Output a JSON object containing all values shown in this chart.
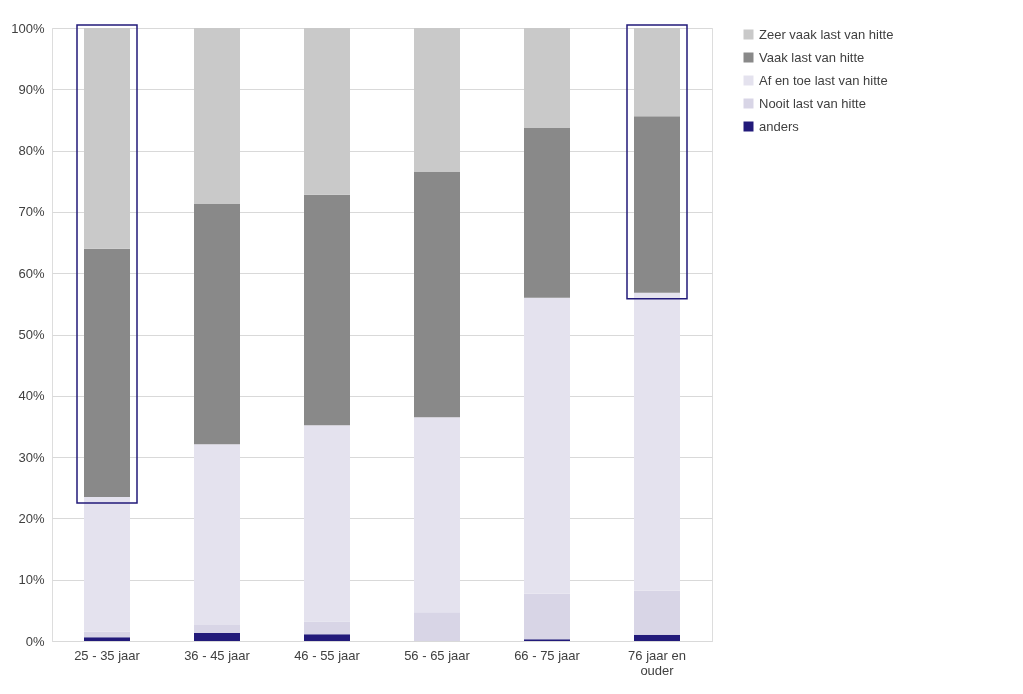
{
  "chart_data": {
    "type": "bar",
    "stacked": true,
    "categories": [
      "25 - 35 jaar",
      "36 - 45 jaar",
      "46 - 55 jaar",
      "56 - 65 jaar",
      "66 - 75 jaar",
      "76 jaar en ouder"
    ],
    "series": [
      {
        "name": "anders",
        "color": "#221a7a",
        "values": [
          0.6,
          1.3,
          1.1,
          0,
          0.3,
          1.0
        ]
      },
      {
        "name": "Nooit last van hitte",
        "color": "#d8d5e6",
        "values": [
          0.9,
          1.3,
          2.1,
          4.7,
          7.4,
          7.2
        ]
      },
      {
        "name": "Af en toe last van hitte",
        "color": "#e4e2ee",
        "values": [
          22.0,
          29.5,
          32.0,
          31.8,
          48.3,
          48.6
        ]
      },
      {
        "name": "Vaak last van hitte",
        "color": "#898989",
        "values": [
          40.5,
          39.2,
          37.6,
          40.0,
          27.7,
          28.8
        ]
      },
      {
        "name": "Zeer vaak last van hitte",
        "color": "#c9c9c9",
        "values": [
          36.0,
          28.7,
          27.2,
          23.5,
          16.3,
          14.4
        ]
      }
    ],
    "ylim": [
      0,
      100
    ],
    "yticks": [
      {
        "value": 0,
        "label": "0%"
      },
      {
        "value": 10,
        "label": "10%"
      },
      {
        "value": 20,
        "label": "20%"
      },
      {
        "value": 30,
        "label": "30%"
      },
      {
        "value": 40,
        "label": "40%"
      },
      {
        "value": 50,
        "label": "50%"
      },
      {
        "value": 60,
        "label": "60%"
      },
      {
        "value": 70,
        "label": "70%"
      },
      {
        "value": 80,
        "label": "80%"
      },
      {
        "value": 90,
        "label": "90%"
      },
      {
        "value": 100,
        "label": "100%"
      }
    ],
    "grid": "y",
    "legend": "top right"
  }
}
